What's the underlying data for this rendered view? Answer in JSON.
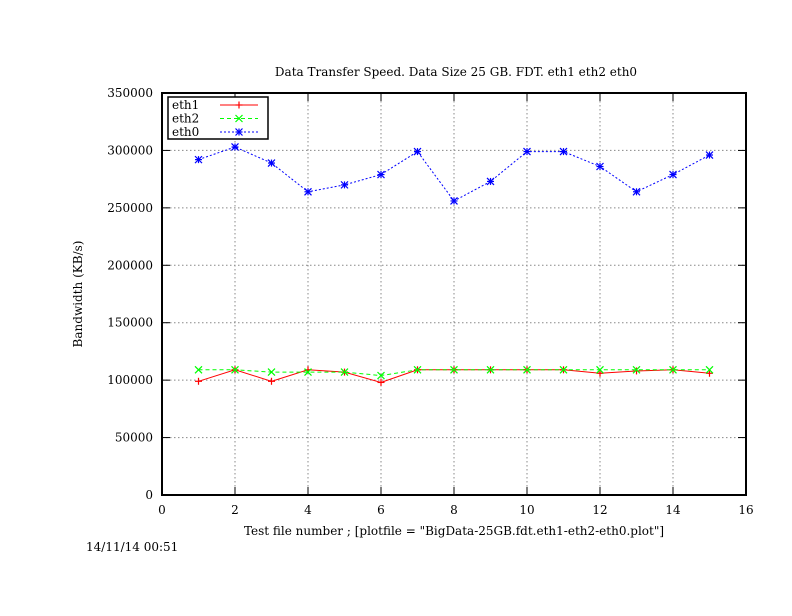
{
  "chart_data": {
    "type": "line",
    "title": "Data Transfer Speed. Data Size 25 GB. FDT. eth1 eth2 eth0",
    "xlabel": "Test file number ; [plotfile = \"BigData-25GB.fdt.eth1-eth2-eth0.plot\"]",
    "ylabel": "Bandwidth (KB/s)",
    "xlim": [
      0,
      16
    ],
    "ylim": [
      0,
      350000
    ],
    "x_ticks": [
      0,
      2,
      4,
      6,
      8,
      10,
      12,
      14,
      16
    ],
    "y_ticks": [
      0,
      50000,
      100000,
      150000,
      200000,
      250000,
      300000,
      350000
    ],
    "grid": true,
    "legend_position": "top-left",
    "x": [
      1,
      2,
      3,
      4,
      5,
      6,
      7,
      8,
      9,
      10,
      11,
      12,
      13,
      14,
      15
    ],
    "series": [
      {
        "name": "eth1",
        "color": "#ff0000",
        "line_style": "solid",
        "marker": "plus",
        "values": [
          99000,
          109000,
          99000,
          109000,
          107000,
          98000,
          109000,
          109000,
          109000,
          109000,
          109000,
          106000,
          108000,
          109000,
          106000
        ]
      },
      {
        "name": "eth2",
        "color": "#00ff00",
        "line_style": "dashed",
        "marker": "cross",
        "values": [
          109000,
          109000,
          107000,
          107000,
          107000,
          104000,
          109000,
          109000,
          109000,
          109000,
          109000,
          109000,
          109000,
          109000,
          109000
        ]
      },
      {
        "name": "eth0",
        "color": "#0000ff",
        "line_style": "dotted",
        "marker": "star",
        "values": [
          292000,
          303000,
          289000,
          264000,
          270000,
          279000,
          299000,
          256000,
          273000,
          299000,
          299000,
          286000,
          264000,
          279000,
          296000
        ]
      }
    ]
  },
  "timestamp": "14/11/14 00:51"
}
